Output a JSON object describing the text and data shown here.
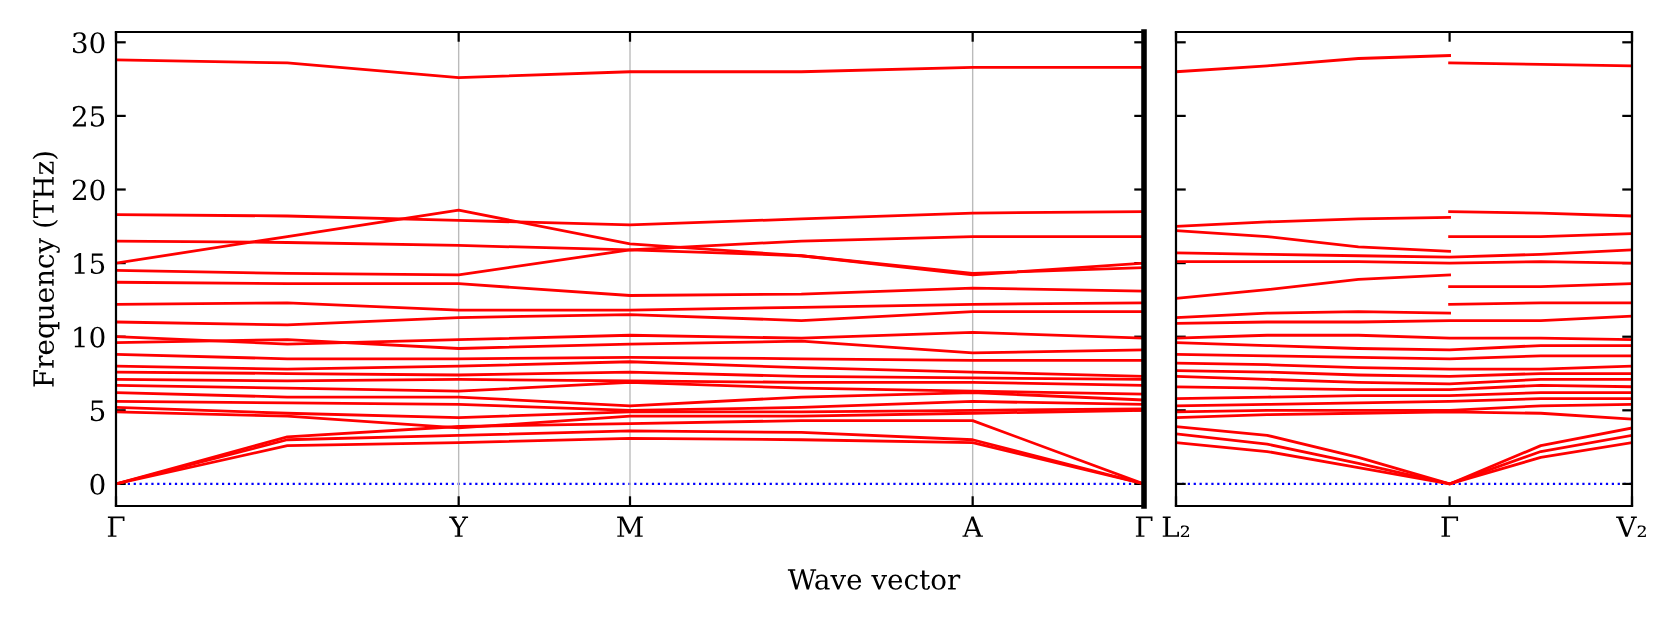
{
  "chart_data": [
    {
      "type": "line",
      "ylabel": "Frequency (THz)",
      "xlabel": "Wave vector",
      "categories": [
        "Γ",
        null,
        "Y",
        "M",
        null,
        "A",
        "Γ"
      ],
      "ylim": [
        -1.5,
        30.7
      ],
      "yticks": [
        0,
        5,
        10,
        15,
        20,
        25,
        30
      ],
      "grid": "x",
      "line_style": "solid",
      "marker": "none",
      "ref_lines": [
        {
          "axis": "y",
          "value": 0,
          "color": "#0000ff",
          "line_style": "dotted"
        }
      ],
      "series": [
        {
          "color": "#ff0000",
          "values": [
            28.8,
            28.6,
            27.6,
            28.0,
            28.0,
            28.3,
            28.3
          ]
        },
        {
          "color": "#ff0000",
          "values": [
            18.3,
            18.2,
            17.9,
            17.6,
            18.0,
            18.4,
            18.5
          ]
        },
        {
          "color": "#ff0000",
          "values": [
            15.0,
            16.8,
            18.6,
            16.3,
            15.5,
            14.2,
            15.0
          ]
        },
        {
          "color": "#ff0000",
          "values": [
            16.5,
            16.4,
            16.2,
            15.9,
            16.5,
            16.8,
            16.8
          ]
        },
        {
          "color": "#ff0000",
          "values": [
            14.5,
            14.3,
            14.2,
            15.9,
            15.5,
            14.3,
            14.7
          ]
        },
        {
          "color": "#ff0000",
          "values": [
            13.7,
            13.6,
            13.6,
            12.8,
            12.9,
            13.3,
            13.1
          ]
        },
        {
          "color": "#ff0000",
          "values": [
            12.2,
            12.3,
            11.8,
            11.8,
            12.0,
            12.2,
            12.3
          ]
        },
        {
          "color": "#ff0000",
          "values": [
            11.0,
            10.8,
            11.3,
            11.5,
            11.1,
            11.7,
            11.7
          ]
        },
        {
          "color": "#ff0000",
          "values": [
            10.0,
            9.5,
            9.8,
            10.1,
            9.9,
            10.3,
            9.9
          ]
        },
        {
          "color": "#ff0000",
          "values": [
            9.6,
            9.8,
            9.2,
            9.5,
            9.7,
            8.9,
            9.1
          ]
        },
        {
          "color": "#ff0000",
          "values": [
            8.8,
            8.5,
            8.5,
            8.6,
            8.5,
            8.4,
            8.4
          ]
        },
        {
          "color": "#ff0000",
          "values": [
            8.0,
            7.8,
            8.0,
            8.3,
            7.9,
            7.6,
            7.3
          ]
        },
        {
          "color": "#ff0000",
          "values": [
            7.6,
            7.5,
            7.4,
            7.6,
            7.3,
            7.2,
            7.1
          ]
        },
        {
          "color": "#ff0000",
          "values": [
            7.1,
            7.0,
            7.1,
            7.0,
            6.9,
            6.9,
            6.7
          ]
        },
        {
          "color": "#ff0000",
          "values": [
            6.7,
            6.5,
            6.3,
            6.9,
            6.5,
            6.3,
            6.1
          ]
        },
        {
          "color": "#ff0000",
          "values": [
            6.2,
            5.9,
            5.9,
            5.3,
            5.9,
            6.2,
            5.7
          ]
        },
        {
          "color": "#ff0000",
          "values": [
            5.6,
            5.5,
            5.4,
            5.0,
            5.2,
            5.6,
            5.4
          ]
        },
        {
          "color": "#ff0000",
          "values": [
            5.2,
            4.8,
            4.5,
            4.9,
            4.9,
            5.0,
            5.1
          ]
        },
        {
          "color": "#ff0000",
          "values": [
            4.9,
            4.6,
            3.8,
            4.6,
            4.6,
            4.8,
            5.0
          ]
        },
        {
          "color": "#ff0000",
          "values": [
            0,
            3.2,
            3.9,
            4.1,
            4.3,
            4.3,
            0
          ]
        },
        {
          "color": "#ff0000",
          "values": [
            0,
            3.0,
            3.3,
            3.6,
            3.5,
            3.0,
            0
          ]
        },
        {
          "color": "#ff0000",
          "values": [
            0,
            2.6,
            2.8,
            3.1,
            3.0,
            2.8,
            0
          ]
        }
      ]
    },
    {
      "type": "line",
      "categories": [
        "L₂",
        null,
        null,
        "Γ",
        null,
        "V₂"
      ],
      "ylim": [
        -1.5,
        30.7
      ],
      "tick_labels": "x",
      "yticks": [
        0,
        5,
        10,
        15,
        20,
        25,
        30
      ],
      "line_style": "solid",
      "marker": "none",
      "ref_lines": [
        {
          "axis": "y",
          "value": 0,
          "color": "#0000ff",
          "line_style": "dotted"
        }
      ],
      "series": [
        {
          "color": "#ff0000",
          "values": [
            28.0,
            28.4,
            28.9,
            29.1,
            null,
            null
          ]
        },
        {
          "color": "#ff0000",
          "values": [
            null,
            null,
            null,
            28.6,
            28.5,
            28.4
          ]
        },
        {
          "color": "#ff0000",
          "values": [
            17.5,
            17.8,
            18.0,
            18.1,
            null,
            null
          ]
        },
        {
          "color": "#ff0000",
          "values": [
            null,
            null,
            null,
            18.5,
            18.4,
            18.2
          ]
        },
        {
          "color": "#ff0000",
          "values": [
            17.2,
            16.8,
            16.1,
            15.8,
            null,
            null
          ]
        },
        {
          "color": "#ff0000",
          "values": [
            null,
            null,
            null,
            16.8,
            16.8,
            17.0
          ]
        },
        {
          "color": "#ff0000",
          "values": [
            15.7,
            15.6,
            15.5,
            15.4,
            15.6,
            15.9
          ]
        },
        {
          "color": "#ff0000",
          "values": [
            15.1,
            15.1,
            15.1,
            15.0,
            15.1,
            15.0
          ]
        },
        {
          "color": "#ff0000",
          "values": [
            12.6,
            13.2,
            13.9,
            14.2,
            null,
            null
          ]
        },
        {
          "color": "#ff0000",
          "values": [
            null,
            null,
            null,
            13.4,
            13.4,
            13.6
          ]
        },
        {
          "color": "#ff0000",
          "values": [
            11.3,
            11.6,
            11.7,
            11.6,
            null,
            null
          ]
        },
        {
          "color": "#ff0000",
          "values": [
            null,
            null,
            null,
            12.2,
            12.3,
            12.3
          ]
        },
        {
          "color": "#ff0000",
          "values": [
            10.9,
            11.0,
            11.0,
            11.1,
            11.1,
            11.4
          ]
        },
        {
          "color": "#ff0000",
          "values": [
            9.9,
            10.1,
            10.1,
            9.9,
            9.9,
            9.8
          ]
        },
        {
          "color": "#ff0000",
          "values": [
            9.6,
            9.4,
            9.2,
            9.1,
            9.4,
            9.4
          ]
        },
        {
          "color": "#ff0000",
          "values": [
            8.8,
            8.7,
            8.6,
            8.5,
            8.7,
            8.7
          ]
        },
        {
          "color": "#ff0000",
          "values": [
            8.2,
            8.1,
            7.9,
            7.8,
            7.8,
            8.0
          ]
        },
        {
          "color": "#ff0000",
          "values": [
            7.7,
            7.6,
            7.4,
            7.3,
            7.5,
            7.5
          ]
        },
        {
          "color": "#ff0000",
          "values": [
            7.3,
            7.1,
            6.9,
            6.8,
            7.1,
            7.1
          ]
        },
        {
          "color": "#ff0000",
          "values": [
            6.6,
            6.5,
            6.4,
            6.4,
            6.7,
            6.6
          ]
        },
        {
          "color": "#ff0000",
          "values": [
            5.8,
            5.9,
            6.0,
            6.0,
            6.2,
            6.2
          ]
        },
        {
          "color": "#ff0000",
          "values": [
            5.3,
            5.4,
            5.5,
            5.6,
            5.8,
            5.8
          ]
        },
        {
          "color": "#ff0000",
          "values": [
            4.9,
            5.0,
            5.0,
            5.0,
            5.3,
            5.4
          ]
        },
        {
          "color": "#ff0000",
          "values": [
            4.5,
            4.7,
            4.8,
            4.9,
            4.8,
            4.4
          ]
        },
        {
          "color": "#ff0000",
          "values": [
            3.9,
            3.3,
            1.8,
            0,
            2.6,
            3.8
          ]
        },
        {
          "color": "#ff0000",
          "values": [
            3.4,
            2.7,
            1.4,
            0,
            2.2,
            3.3
          ]
        },
        {
          "color": "#ff0000",
          "values": [
            2.8,
            2.2,
            1.1,
            0,
            1.8,
            2.8
          ]
        }
      ]
    }
  ]
}
